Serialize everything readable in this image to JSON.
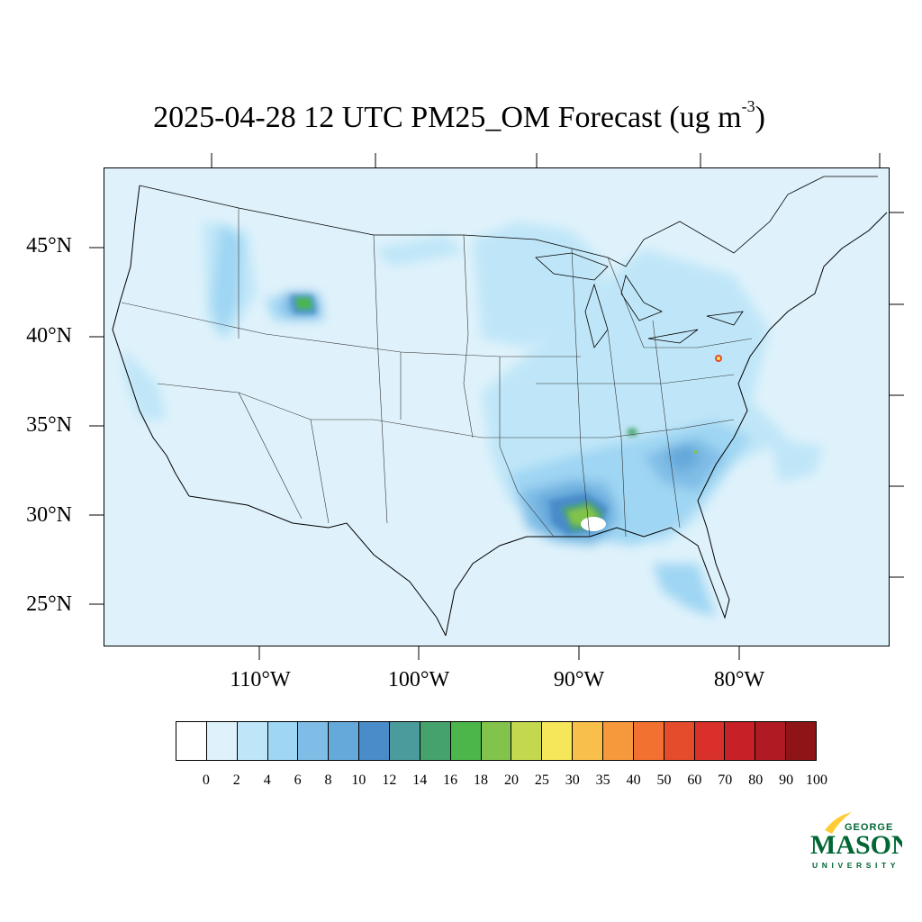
{
  "title": {
    "main": "2025-04-28 12 UTC PM25_OM Forecast (ug m",
    "superscript": "-3",
    "close": ")"
  },
  "lat_labels": [
    "45°N",
    "40°N",
    "35°N",
    "30°N",
    "25°N"
  ],
  "lon_labels": [
    "110°W",
    "100°W",
    "90°W",
    "80°W"
  ],
  "colorbar": {
    "labels": [
      "0",
      "2",
      "4",
      "6",
      "8",
      "10",
      "12",
      "14",
      "16",
      "18",
      "20",
      "25",
      "30",
      "35",
      "40",
      "50",
      "60",
      "70",
      "80",
      "90",
      "100"
    ],
    "colors": [
      "#ffffff",
      "#dff2fb",
      "#bfe6f8",
      "#9fd6f3",
      "#80bde6",
      "#65a8da",
      "#4a8bc9",
      "#4a9c9c",
      "#46a26c",
      "#4cb64a",
      "#82c34c",
      "#c4d84f",
      "#f5e65a",
      "#f8c04a",
      "#f6993d",
      "#f27130",
      "#e44c2c",
      "#d9302a",
      "#c72027",
      "#b01a22",
      "#8e1418"
    ]
  },
  "logo": {
    "line1": "GEORGE",
    "line2": "MASON",
    "line3": "UNIVERSITY",
    "color": "#006633",
    "accent": "#ffcc33"
  }
}
